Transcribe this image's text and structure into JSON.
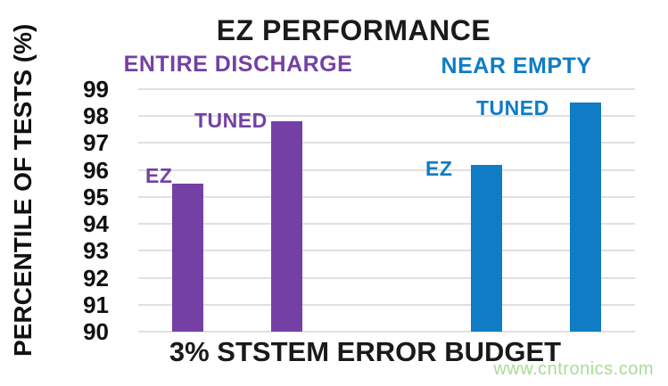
{
  "watermark": {
    "text": "www.cntronics.com",
    "color": "#a9dc96"
  },
  "chart_data": {
    "type": "bar",
    "title": "EZ PERFORMANCE",
    "xlabel": "3% STSTEM ERROR BUDGET",
    "ylabel": "PERCENTILE OF TESTS (%)",
    "ylim": [
      90,
      99
    ],
    "ytick_step": 1,
    "grid": true,
    "legend_position": "labels-beside-bars",
    "groups": [
      {
        "label": "ENTIRE DISCHARGE",
        "color": "#7440a5",
        "bars": [
          {
            "label": "EZ",
            "value": 95.5
          },
          {
            "label": "TUNED",
            "value": 97.8
          }
        ]
      },
      {
        "label": "NEAR EMPTY",
        "color": "#0f7cc5",
        "bars": [
          {
            "label": "EZ",
            "value": 96.2
          },
          {
            "label": "TUNED",
            "value": 98.5
          }
        ]
      }
    ]
  }
}
